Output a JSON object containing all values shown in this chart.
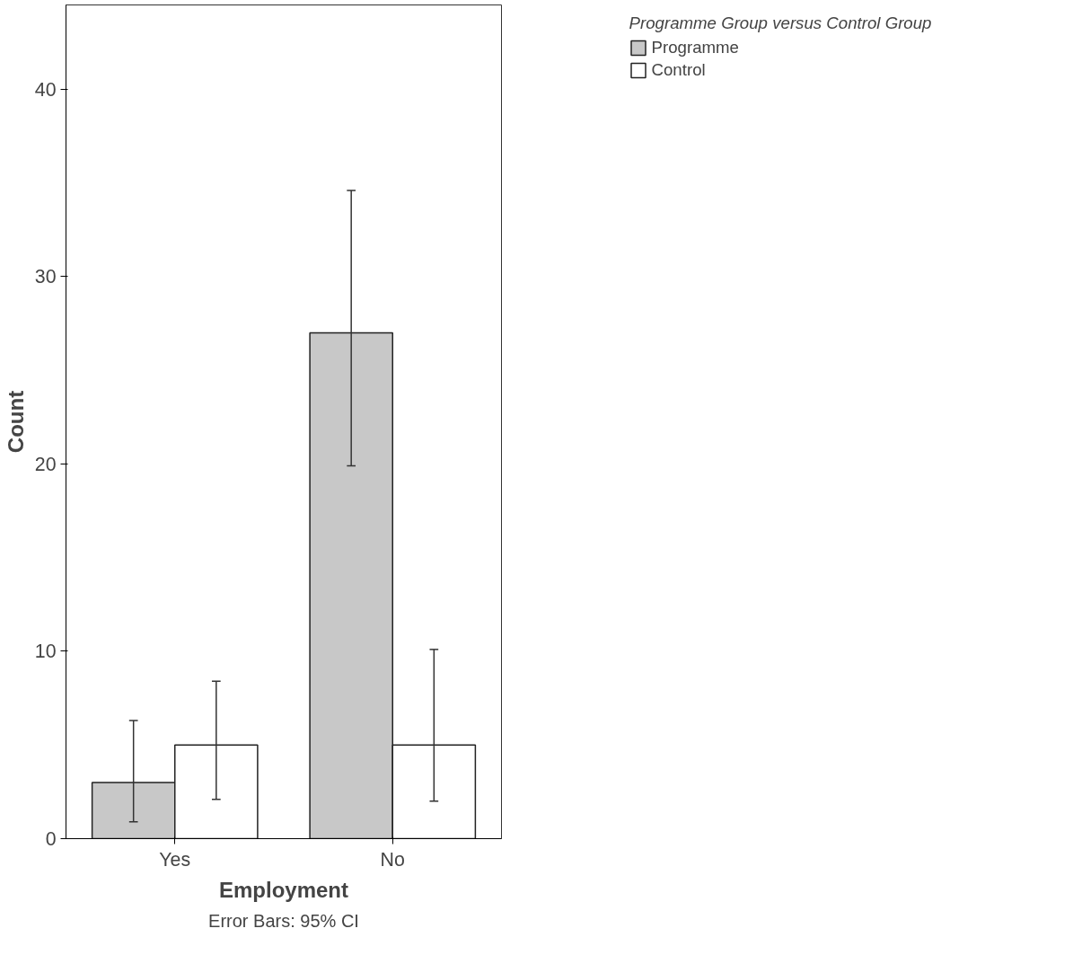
{
  "chart_data": {
    "type": "bar",
    "xlabel": "Employment",
    "ylabel": "Count",
    "legend_title": "Programme Group versus Control Group",
    "categories": [
      "Yes",
      "No"
    ],
    "series": [
      {
        "name": "Programme",
        "color": "#c8c8c8",
        "values": [
          3,
          27
        ],
        "errors": [
          [
            0.9,
            6.3
          ],
          [
            19.9,
            34.6
          ]
        ]
      },
      {
        "name": "Control",
        "color": "#ffffff",
        "values": [
          5,
          5
        ],
        "errors": [
          [
            2.1,
            8.4
          ],
          [
            2.0,
            10.1
          ]
        ]
      }
    ],
    "ylim": [
      0,
      44.5
    ],
    "yticks": [
      0,
      10,
      20,
      30,
      40
    ],
    "grid": false,
    "legend": "top right",
    "annotations": [
      "Error Bars: 95% CI"
    ]
  }
}
